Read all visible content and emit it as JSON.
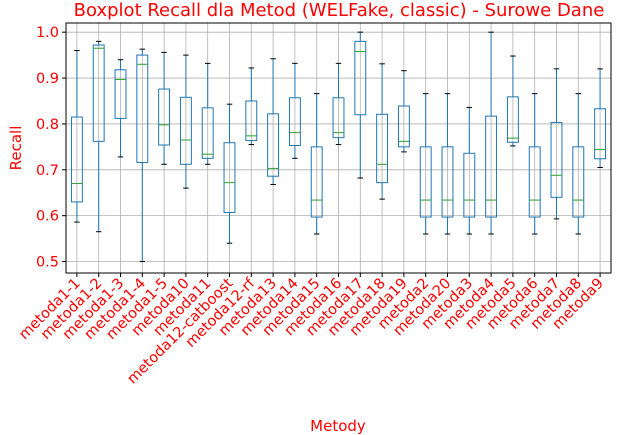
{
  "chart_data": {
    "type": "boxplot",
    "title": "Boxplot Recall dla Metod (WELFake, classic) - Surowe Dane",
    "xlabel": "Metody",
    "ylabel": "Recall",
    "ylim": [
      0.475,
      1.02
    ],
    "yticks": [
      "0.5",
      "0.6",
      "0.7",
      "0.8",
      "0.9",
      "1.0"
    ],
    "grid": true,
    "colors": {
      "text": "#ff0000",
      "box": "#1f77b4",
      "median": "#2ca02c",
      "grid": "#b0b0b0",
      "axis": "#000000"
    },
    "categories": [
      "metoda1-1",
      "metoda1-2",
      "metoda1-3",
      "metoda1-4",
      "metoda1-5",
      "metoda10",
      "metoda11",
      "metoda12-catboost",
      "metoda12-rf",
      "metoda13",
      "metoda14",
      "metoda15",
      "metoda16",
      "metoda17",
      "metoda18",
      "metoda19",
      "metoda2",
      "metoda20",
      "metoda3",
      "metoda4",
      "metoda5",
      "metoda6",
      "metoda7",
      "metoda8",
      "metoda9"
    ],
    "boxes": [
      {
        "whislo": 0.586,
        "q1": 0.63,
        "med": 0.67,
        "q3": 0.815,
        "whishi": 0.96
      },
      {
        "whislo": 0.565,
        "q1": 0.762,
        "med": 0.965,
        "q3": 0.972,
        "whishi": 0.98
      },
      {
        "whislo": 0.728,
        "q1": 0.812,
        "med": 0.897,
        "q3": 0.918,
        "whishi": 0.94
      },
      {
        "whislo": 0.5,
        "q1": 0.716,
        "med": 0.93,
        "q3": 0.95,
        "whishi": 0.963
      },
      {
        "whislo": 0.712,
        "q1": 0.754,
        "med": 0.798,
        "q3": 0.876,
        "whishi": 0.956
      },
      {
        "whislo": 0.66,
        "q1": 0.712,
        "med": 0.765,
        "q3": 0.858,
        "whishi": 0.95
      },
      {
        "whislo": 0.712,
        "q1": 0.725,
        "med": 0.734,
        "q3": 0.835,
        "whishi": 0.932
      },
      {
        "whislo": 0.54,
        "q1": 0.607,
        "med": 0.672,
        "q3": 0.759,
        "whishi": 0.843
      },
      {
        "whislo": 0.755,
        "q1": 0.764,
        "med": 0.774,
        "q3": 0.85,
        "whishi": 0.922
      },
      {
        "whislo": 0.668,
        "q1": 0.686,
        "med": 0.703,
        "q3": 0.822,
        "whishi": 0.942
      },
      {
        "whislo": 0.725,
        "q1": 0.753,
        "med": 0.781,
        "q3": 0.857,
        "whishi": 0.932
      },
      {
        "whislo": 0.56,
        "q1": 0.597,
        "med": 0.634,
        "q3": 0.75,
        "whishi": 0.866
      },
      {
        "whislo": 0.755,
        "q1": 0.77,
        "med": 0.781,
        "q3": 0.857,
        "whishi": 0.932
      },
      {
        "whislo": 0.682,
        "q1": 0.82,
        "med": 0.958,
        "q3": 0.98,
        "whishi": 1.0
      },
      {
        "whislo": 0.636,
        "q1": 0.672,
        "med": 0.712,
        "q3": 0.821,
        "whishi": 0.931
      },
      {
        "whislo": 0.739,
        "q1": 0.75,
        "med": 0.762,
        "q3": 0.839,
        "whishi": 0.916
      },
      {
        "whislo": 0.56,
        "q1": 0.597,
        "med": 0.634,
        "q3": 0.75,
        "whishi": 0.866
      },
      {
        "whislo": 0.56,
        "q1": 0.597,
        "med": 0.634,
        "q3": 0.75,
        "whishi": 0.866
      },
      {
        "whislo": 0.56,
        "q1": 0.597,
        "med": 0.634,
        "q3": 0.736,
        "whishi": 0.836
      },
      {
        "whislo": 0.56,
        "q1": 0.597,
        "med": 0.634,
        "q3": 0.817,
        "whishi": 1.0
      },
      {
        "whislo": 0.752,
        "q1": 0.76,
        "med": 0.769,
        "q3": 0.859,
        "whishi": 0.948
      },
      {
        "whislo": 0.56,
        "q1": 0.597,
        "med": 0.634,
        "q3": 0.75,
        "whishi": 0.866
      },
      {
        "whislo": 0.593,
        "q1": 0.64,
        "med": 0.688,
        "q3": 0.803,
        "whishi": 0.92
      },
      {
        "whislo": 0.56,
        "q1": 0.597,
        "med": 0.634,
        "q3": 0.75,
        "whishi": 0.866
      },
      {
        "whislo": 0.705,
        "q1": 0.724,
        "med": 0.744,
        "q3": 0.833,
        "whishi": 0.92
      }
    ]
  }
}
